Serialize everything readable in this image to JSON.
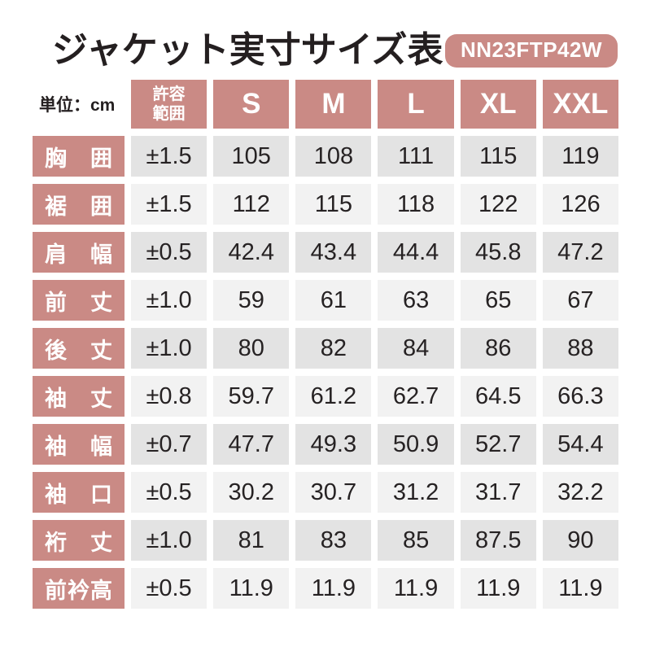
{
  "title": "ジャケット実寸サイズ表",
  "product_code": "NN23FTP42W",
  "unit_label": "単位：cm",
  "colors": {
    "accent": "#ca8a85",
    "row_dark": "#e3e3e3",
    "row_light": "#f2f2f2",
    "title_ink": "#241f20"
  },
  "table": {
    "tolerance_header": "許容範囲",
    "size_headers": [
      "S",
      "M",
      "L",
      "XL",
      "XXL"
    ],
    "rows": [
      {
        "label": "胸囲",
        "tolerance": "±1.5",
        "values": [
          "105",
          "108",
          "111",
          "115",
          "119"
        ]
      },
      {
        "label": "裾囲",
        "tolerance": "±1.5",
        "values": [
          "112",
          "115",
          "118",
          "122",
          "126"
        ]
      },
      {
        "label": "肩幅",
        "tolerance": "±0.5",
        "values": [
          "42.4",
          "43.4",
          "44.4",
          "45.8",
          "47.2"
        ]
      },
      {
        "label": "前丈",
        "tolerance": "±1.0",
        "values": [
          "59",
          "61",
          "63",
          "65",
          "67"
        ]
      },
      {
        "label": "後丈",
        "tolerance": "±1.0",
        "values": [
          "80",
          "82",
          "84",
          "86",
          "88"
        ]
      },
      {
        "label": "袖丈",
        "tolerance": "±0.8",
        "values": [
          "59.7",
          "61.2",
          "62.7",
          "64.5",
          "66.3"
        ]
      },
      {
        "label": "袖幅",
        "tolerance": "±0.7",
        "values": [
          "47.7",
          "49.3",
          "50.9",
          "52.7",
          "54.4"
        ]
      },
      {
        "label": "袖口",
        "tolerance": "±0.5",
        "values": [
          "30.2",
          "30.7",
          "31.2",
          "31.7",
          "32.2"
        ]
      },
      {
        "label": "裄丈",
        "tolerance": "±1.0",
        "values": [
          "81",
          "83",
          "85",
          "87.5",
          "90"
        ]
      },
      {
        "label": "前衿高",
        "tolerance": "±0.5",
        "values": [
          "11.9",
          "11.9",
          "11.9",
          "11.9",
          "11.9"
        ]
      }
    ]
  }
}
